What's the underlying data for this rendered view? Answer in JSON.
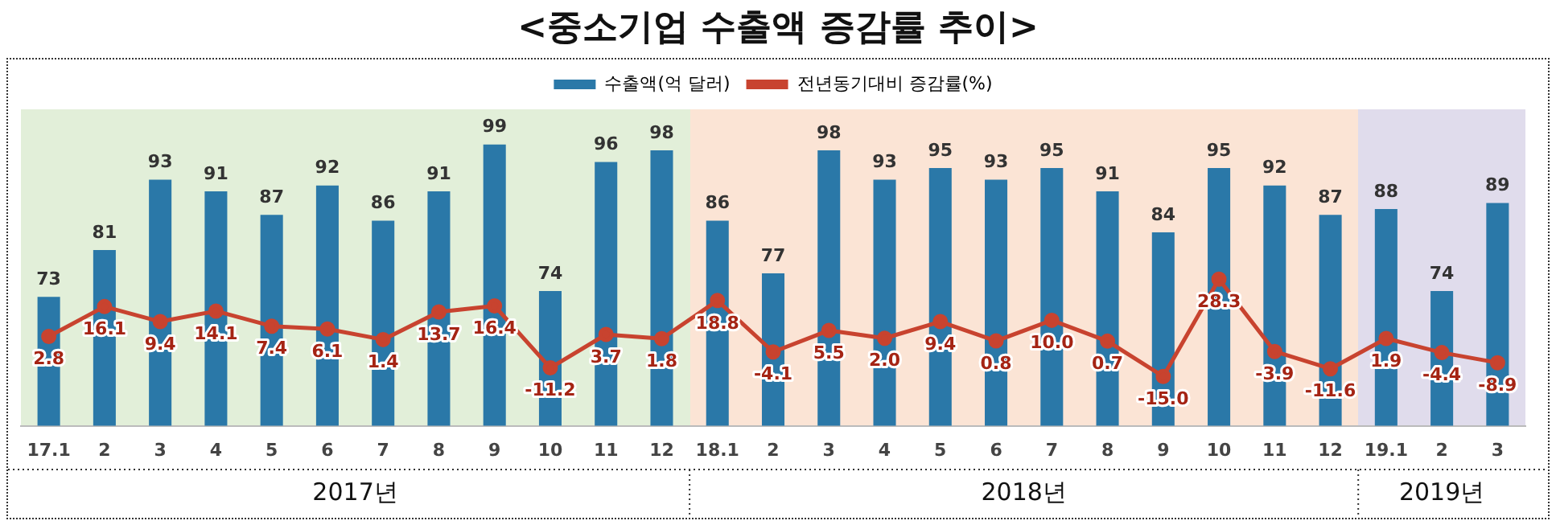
{
  "chart_data": {
    "type": "bar",
    "title": "<중소기업 수출액 증감률 추이>",
    "categories": [
      "17.1",
      "2",
      "3",
      "4",
      "5",
      "6",
      "7",
      "8",
      "9",
      "10",
      "11",
      "12",
      "18.1",
      "2",
      "3",
      "4",
      "5",
      "6",
      "7",
      "8",
      "9",
      "10",
      "11",
      "12",
      "19.1",
      "2",
      "3"
    ],
    "series": [
      {
        "name": "수출액(억 달러)",
        "color": "#2a78a8",
        "values": [
          73,
          81,
          93,
          91,
          87,
          92,
          86,
          91,
          99,
          74,
          96,
          98,
          86,
          77,
          98,
          93,
          95,
          93,
          95,
          91,
          84,
          95,
          92,
          87,
          88,
          74,
          89
        ],
        "value_labels": [
          "73",
          "81",
          "93",
          "91",
          "87",
          "92",
          "86",
          "91",
          "99",
          "74",
          "96",
          "98",
          "86",
          "77",
          "98",
          "93",
          "95",
          "93",
          "95",
          "91",
          "84",
          "95",
          "92",
          "87",
          "88",
          "74",
          "89"
        ]
      },
      {
        "name": "전년동기대비 증감률(%)",
        "type": "line",
        "axis": "y2",
        "color": "#c8432f",
        "values": [
          2.8,
          16.1,
          9.4,
          14.1,
          7.4,
          6.1,
          1.4,
          13.7,
          16.4,
          -11.2,
          3.7,
          1.8,
          18.8,
          -4.1,
          5.5,
          2.0,
          9.4,
          0.8,
          10.0,
          0.7,
          -15.0,
          28.3,
          -3.9,
          -11.6,
          1.9,
          -4.4,
          -8.9
        ],
        "value_labels": [
          "2.8",
          "16.1",
          "9.4",
          "14.1",
          "7.4",
          "6.1",
          "1.4",
          "13.7",
          "16.4",
          "-11.2",
          "3.7",
          "1.8",
          "18.8",
          "-4.1",
          "5.5",
          "2.0",
          "9.4",
          "0.8",
          "10.0",
          "0.7",
          "-15.0",
          "28.3",
          "-3.9",
          "-11.6",
          "1.9",
          "-4.4",
          "-8.9"
        ]
      }
    ],
    "ylim": [
      51,
      105
    ],
    "y2lim": [
      -37,
      104
    ],
    "annotations": [
      "2017년",
      "2018년",
      "2019년"
    ],
    "legend": "top",
    "grid": false,
    "marker": "circle",
    "line_style": "solid",
    "tick_labels": "x"
  }
}
